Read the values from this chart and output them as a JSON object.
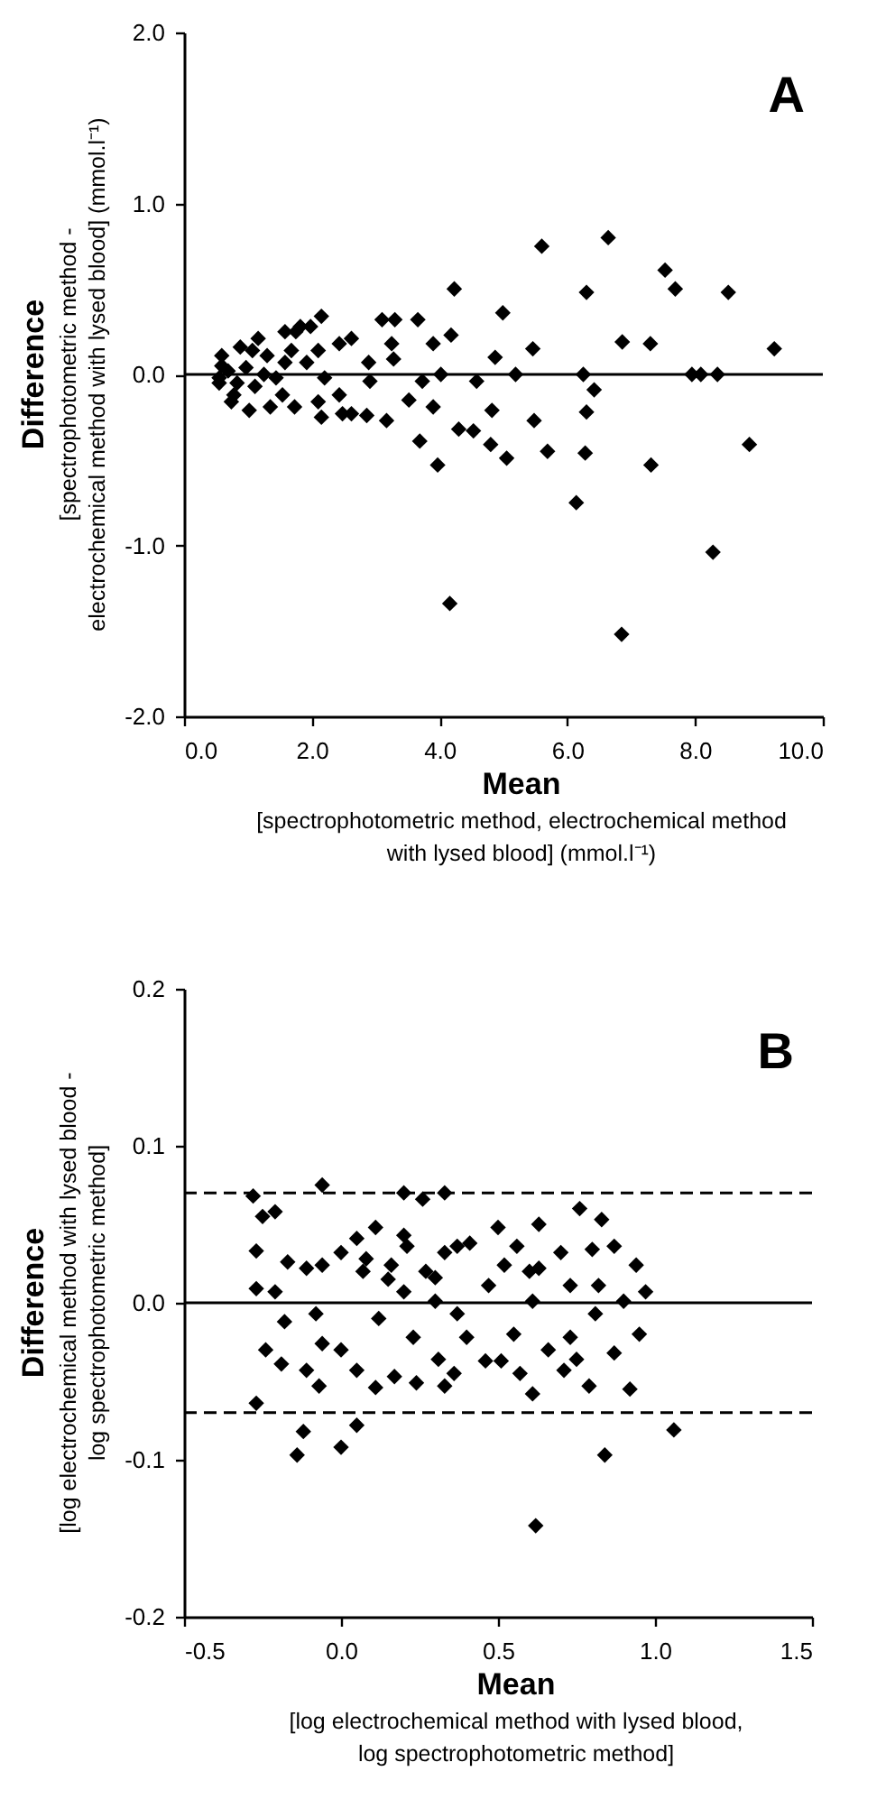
{
  "chart_data": [
    {
      "type": "scatter",
      "title": "A",
      "xlabel": "Mean\n[spectrophotometric method, electrochemical method\nwith lysed blood] (mmol.l⁻¹)",
      "ylabel": "Difference\n[spectrophotometric method -\nelectrochemical method with lysed blood] (mmol.l⁻¹)",
      "xlim": [
        0,
        10
      ],
      "xticks": [
        {
          "value": 0,
          "label": "0.0"
        },
        {
          "value": 2,
          "label": "2.0"
        },
        {
          "value": 4,
          "label": "4.0"
        },
        {
          "value": 6,
          "label": "6.0"
        },
        {
          "value": 8,
          "label": "8.0"
        },
        {
          "value": 10,
          "label": "10.0"
        }
      ],
      "ylim": [
        -2,
        2
      ],
      "yticks": [
        {
          "value": -2,
          "label": "-2.0"
        },
        {
          "value": -1,
          "label": "-1.0"
        },
        {
          "value": 0,
          "label": "0.0"
        },
        {
          "value": 1,
          "label": "1.0"
        },
        {
          "value": 2,
          "label": "2.0"
        }
      ],
      "grid": false,
      "marker": "diamond",
      "ref_lines": [
        {
          "axis": "y",
          "value": 0,
          "line_style": "solid",
          "color": "#000000"
        }
      ],
      "series": [
        {
          "color": "#000000",
          "x": [
            4.23,
            6.3,
            8.52,
            7.69,
            7.53,
            5.6,
            6.64,
            4.99,
            2.15,
            9.24,
            6.86,
            7.3,
            5.46,
            3.66,
            3.1,
            3.3,
            1.98,
            1.75,
            8.09,
            7.95,
            8.35,
            6.25,
            6.42,
            6.3,
            6.28,
            6.14,
            6.85,
            8.28,
            8.85,
            7.31,
            5.69,
            5.48,
            5.19,
            4.87,
            4.82,
            4.8,
            5.05,
            4.58,
            4.53,
            4.3,
            4.16,
            4.18,
            4.02,
            3.97,
            3.9,
            3.9,
            3.73,
            3.69,
            3.52,
            3.17,
            3.25,
            3.28,
            2.91,
            2.89,
            2.86,
            2.62,
            2.48,
            2.43,
            2.62,
            2.43,
            2.1,
            2.15,
            2.1,
            2.2,
            1.92,
            1.82,
            1.58,
            1.73,
            1.54,
            1.44,
            1.3,
            1.11,
            1.07,
            0.97,
            0.78,
            0.74,
            0.59,
            0.55,
            0.88,
            1.02,
            1.35,
            0.69,
            0.59,
            0.55,
            1.16,
            1.68,
            1.58,
            1.25,
            0.83
          ],
          "values": [
            0.5,
            0.48,
            0.48,
            0.5,
            0.61,
            0.75,
            0.8,
            0.36,
            0.34,
            0.15,
            0.19,
            0.18,
            0.15,
            0.32,
            0.32,
            0.32,
            0.28,
            0.25,
            0.0,
            0.0,
            0.0,
            0.0,
            -0.09,
            -0.22,
            -0.46,
            -0.75,
            -1.52,
            -1.04,
            -0.41,
            -0.53,
            -0.45,
            -0.27,
            0.0,
            0.1,
            -0.21,
            -0.41,
            -0.49,
            -0.04,
            -0.33,
            -0.32,
            -1.34,
            0.23,
            0.0,
            -0.53,
            -0.19,
            0.18,
            -0.04,
            -0.39,
            -0.15,
            -0.27,
            0.18,
            0.09,
            -0.04,
            0.07,
            -0.24,
            -0.23,
            -0.23,
            -0.12,
            0.21,
            0.18,
            0.14,
            -0.25,
            -0.16,
            -0.02,
            0.07,
            0.28,
            0.25,
            -0.19,
            -0.12,
            -0.02,
            0.11,
            -0.07,
            0.14,
            0.04,
            -0.12,
            -0.16,
            0.11,
            -0.05,
            0.16,
            -0.21,
            -0.19,
            0.02,
            0.05,
            -0.02,
            0.21,
            0.14,
            0.07,
            0.0,
            -0.05
          ]
        }
      ]
    },
    {
      "type": "scatter",
      "title": "B",
      "xlabel": "Mean\n[log electrochemical method with lysed blood,\nlog spectrophotometric method]",
      "ylabel": "Difference\n[log electrochemical method with lysed blood -\nlog spectrophotometric method]",
      "xlim": [
        -0.5,
        1.5
      ],
      "xticks": [
        -0.5,
        {
          "value": 0,
          "label": "0.0"
        },
        0.5,
        {
          "value": 1,
          "label": "1.0"
        },
        1.5
      ],
      "ylim": [
        -0.2,
        0.2
      ],
      "yticks": [
        -0.2,
        -0.1,
        {
          "value": 0,
          "label": "0.0"
        },
        0.1,
        0.2
      ],
      "grid": false,
      "marker": "diamond",
      "ref_lines": [
        {
          "axis": "y",
          "value": 0,
          "line_style": "solid",
          "color": "#000000"
        },
        {
          "axis": "y",
          "value": 0.07,
          "line_style": "dashed",
          "color": "#000000"
        },
        {
          "axis": "y",
          "value": -0.07,
          "line_style": "dashed",
          "color": "#000000"
        }
      ],
      "series": [
        {
          "color": "#000000",
          "x": [
            -0.28,
            -0.25,
            -0.21,
            -0.06,
            0.2,
            0.26,
            0.33,
            0.76,
            0.83,
            0.63,
            0.7,
            0.8,
            0.87,
            0.94,
            0.97,
            -0.27,
            -0.27,
            -0.17,
            -0.06,
            0.0,
            0.05,
            0.11,
            0.08,
            0.2,
            0.21,
            0.3,
            0.33,
            0.37,
            0.41,
            0.5,
            0.52,
            0.56,
            0.6,
            0.63,
            0.47,
            0.73,
            0.82,
            -0.11,
            0.16,
            -0.27,
            -0.12,
            -0.14,
            0.0,
            0.05,
            0.62,
            0.84,
            1.06,
            0.92,
            0.79,
            0.87,
            0.95,
            0.61,
            0.57,
            0.51,
            0.46,
            0.4,
            0.33,
            0.24,
            0.17,
            0.11,
            0.12,
            0.05,
            0.0,
            -0.07,
            -0.11,
            -0.19,
            -0.24,
            -0.18,
            -0.21,
            0.23,
            0.31,
            0.36,
            0.3,
            0.37,
            0.55,
            0.66,
            0.71,
            0.75,
            0.81,
            0.73,
            0.61,
            0.9,
            -0.06,
            -0.08,
            0.2,
            0.27,
            0.07,
            0.15
          ],
          "values": [
            0.068,
            0.055,
            0.058,
            0.075,
            0.07,
            0.066,
            0.07,
            0.06,
            0.053,
            0.05,
            0.032,
            0.034,
            0.036,
            0.024,
            0.007,
            0.033,
            0.009,
            0.026,
            0.024,
            0.032,
            0.041,
            0.048,
            0.028,
            0.043,
            0.036,
            0.016,
            0.032,
            0.036,
            0.038,
            0.048,
            0.024,
            0.036,
            0.02,
            0.022,
            0.011,
            0.011,
            0.011,
            0.022,
            0.024,
            -0.064,
            -0.082,
            -0.097,
            -0.092,
            -0.078,
            -0.142,
            -0.097,
            -0.081,
            -0.055,
            -0.053,
            -0.032,
            -0.02,
            -0.058,
            -0.045,
            -0.037,
            -0.037,
            -0.022,
            -0.053,
            -0.051,
            -0.047,
            -0.054,
            -0.01,
            -0.043,
            -0.03,
            -0.053,
            -0.043,
            -0.039,
            -0.03,
            -0.012,
            0.007,
            -0.022,
            -0.036,
            -0.045,
            0.001,
            -0.007,
            -0.02,
            -0.03,
            -0.043,
            -0.036,
            -0.007,
            -0.022,
            0.001,
            0.001,
            -0.026,
            -0.007,
            0.007,
            0.02,
            0.02,
            0.015
          ]
        }
      ]
    }
  ]
}
